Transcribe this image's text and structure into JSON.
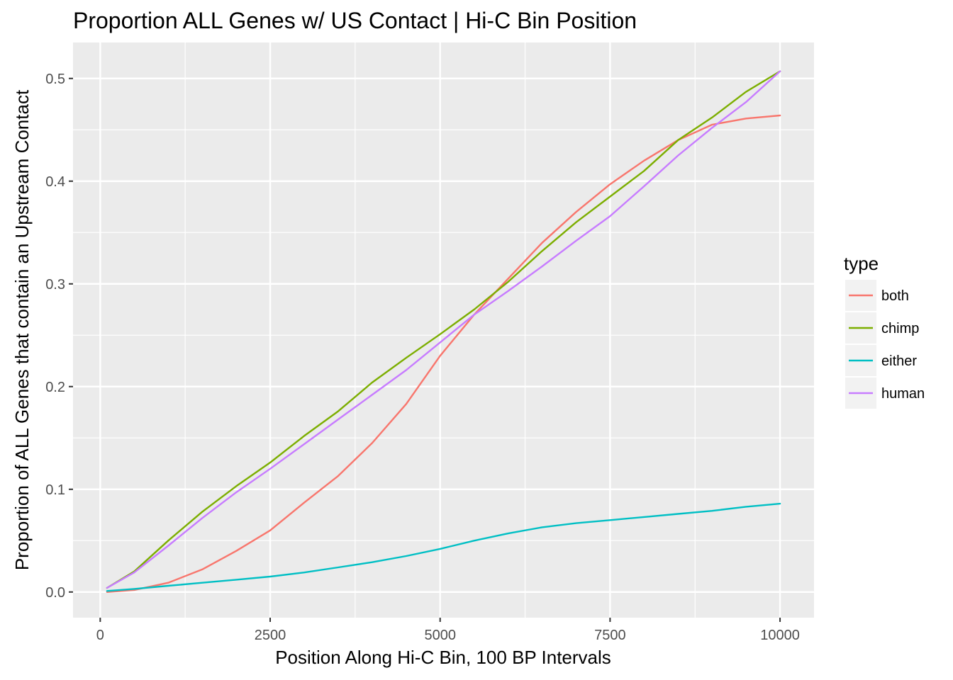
{
  "chart_data": {
    "type": "line",
    "title": "Proportion ALL Genes w/ US Contact | Hi-C Bin Position",
    "xlabel": "Position Along Hi-C Bin, 100 BP Intervals",
    "ylabel": "Proportion of ALL Genes that contain an Upstream Contact",
    "xlim": [
      -400,
      10500
    ],
    "ylim": [
      -0.025,
      0.535
    ],
    "x_ticks": [
      0,
      2500,
      5000,
      7500,
      10000
    ],
    "x_tick_labels": [
      "0",
      "2500",
      "5000",
      "7500",
      "10000"
    ],
    "y_ticks": [
      0.0,
      0.1,
      0.2,
      0.3,
      0.4,
      0.5
    ],
    "y_tick_labels": [
      "0.0",
      "0.1",
      "0.2",
      "0.3",
      "0.4",
      "0.5"
    ],
    "grid": true,
    "panel_background": "#ebebeb",
    "grid_color": "#ffffff",
    "legend": {
      "title": "type",
      "position": "right"
    },
    "x": [
      100,
      500,
      1000,
      1500,
      2000,
      2500,
      3000,
      3500,
      4000,
      4500,
      5000,
      5500,
      6000,
      6500,
      7000,
      7500,
      8000,
      8500,
      9000,
      9500,
      10000
    ],
    "series": [
      {
        "name": "both",
        "color": "#F8766D",
        "values": [
          0.0,
          0.002,
          0.009,
          0.022,
          0.04,
          0.06,
          0.087,
          0.113,
          0.145,
          0.183,
          0.23,
          0.27,
          0.305,
          0.34,
          0.37,
          0.397,
          0.42,
          0.44,
          0.455,
          0.461,
          0.464
        ]
      },
      {
        "name": "chimp",
        "color": "#7CAE00",
        "values": [
          0.004,
          0.02,
          0.05,
          0.078,
          0.103,
          0.126,
          0.152,
          0.176,
          0.204,
          0.228,
          0.251,
          0.275,
          0.302,
          0.332,
          0.36,
          0.385,
          0.41,
          0.44,
          0.462,
          0.487,
          0.507
        ]
      },
      {
        "name": "either",
        "color": "#00BFC4",
        "values": [
          0.001,
          0.003,
          0.006,
          0.009,
          0.012,
          0.015,
          0.019,
          0.024,
          0.029,
          0.035,
          0.042,
          0.05,
          0.057,
          0.063,
          0.067,
          0.07,
          0.073,
          0.076,
          0.079,
          0.083,
          0.086
        ]
      },
      {
        "name": "human",
        "color": "#C77CFF",
        "values": [
          0.004,
          0.019,
          0.045,
          0.072,
          0.097,
          0.12,
          0.144,
          0.168,
          0.192,
          0.216,
          0.243,
          0.27,
          0.293,
          0.317,
          0.342,
          0.366,
          0.395,
          0.425,
          0.452,
          0.477,
          0.507
        ]
      }
    ]
  }
}
